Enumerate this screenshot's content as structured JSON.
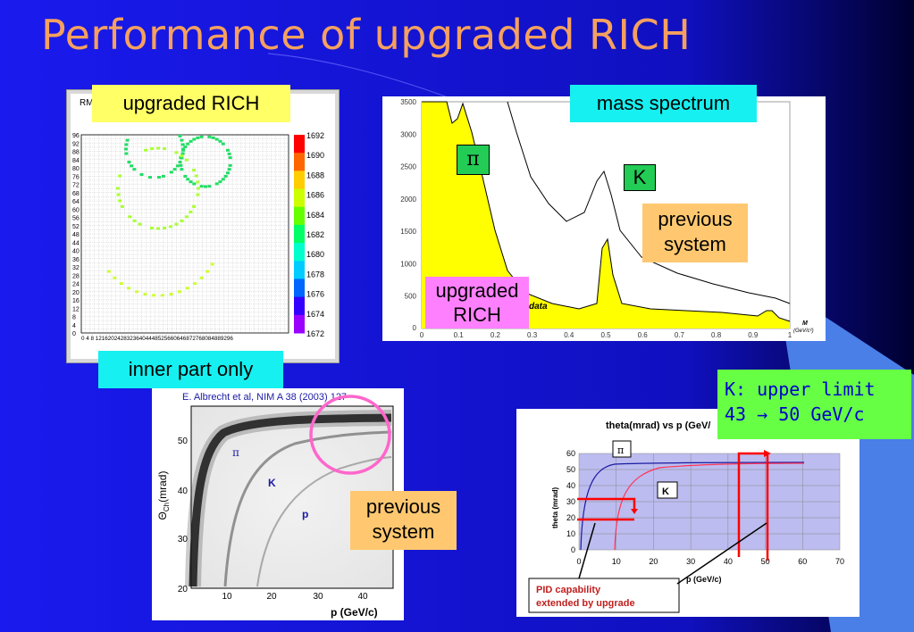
{
  "slide": {
    "title": "Performance of upgraded RICH",
    "colors": {
      "background": "#1616e0",
      "title": "#f5a060",
      "accent_right": "#4a7fe8"
    }
  },
  "labels": {
    "upgraded_rich_top": "upgraded RICH",
    "inner_part_only": "inner part only",
    "mass_spectrum": "mass spectrum",
    "pi_symbol": "π",
    "k_symbol": "K",
    "previous_system_1": "previous system",
    "upgraded_rich_box": "upgraded RICH",
    "previous_system_2": "previous system",
    "k_upper_limit_line1": "K: upper limit",
    "k_upper_limit_line2": "43 → 50 GeV/c"
  },
  "ring_plot": {
    "header": "RM",
    "y_ticks": [
      "96",
      "92",
      "88",
      "84",
      "80",
      "76",
      "72",
      "68",
      "64",
      "60",
      "56",
      "52",
      "48",
      "44",
      "40",
      "36",
      "32",
      "28",
      "24",
      "20",
      "16",
      "12",
      "8",
      "4",
      "0"
    ],
    "x_ticks": "0 4 8 12162024283236404448525660646872768084889296",
    "colorbar_ticks": [
      "1692",
      "1690",
      "1688",
      "1686",
      "1684",
      "1682",
      "1680",
      "1678",
      "1676",
      "1674",
      "1672"
    ]
  },
  "mass_plot": {
    "y_ticks": [
      "3500",
      "3000",
      "2500",
      "2000",
      "1500",
      "1000",
      "500",
      "0"
    ],
    "x_ticks": [
      "0",
      "0.1",
      "0.2",
      "0.3",
      "0.4",
      "0.5",
      "0.6",
      "0.7",
      "0.8",
      "0.9",
      "1"
    ],
    "data_label": "data",
    "axis_label_m": "M",
    "axis_label_unit": "(GeV/c²)"
  },
  "theta_plot": {
    "citation": "E. Albrecht et al, NIM A 38 (2003) 127",
    "ylabel": "Θ",
    "ylabel_sub": "Ch",
    "ylabel_unit": "(mrad)",
    "y_ticks": [
      "50",
      "40",
      "30",
      "20"
    ],
    "x_ticks": [
      "10",
      "20",
      "30",
      "40"
    ],
    "xlabel": "p (GeV/c)",
    "pi_label": "π",
    "k_label": "K",
    "p_label": "p"
  },
  "limit_plot": {
    "title": "theta(mrad) vs p (GeV/",
    "ylabel": "theta (mrad)",
    "y_ticks": [
      "60",
      "50",
      "40",
      "30",
      "20",
      "10",
      "0"
    ],
    "x_ticks": [
      "0",
      "10",
      "20",
      "30",
      "40",
      "50",
      "60",
      "70"
    ],
    "xlabel": "p (GeV/c)",
    "pi_label": "π",
    "k_label": "K",
    "pid_line1": "PID capability",
    "pid_line2": "extended by upgrade"
  }
}
